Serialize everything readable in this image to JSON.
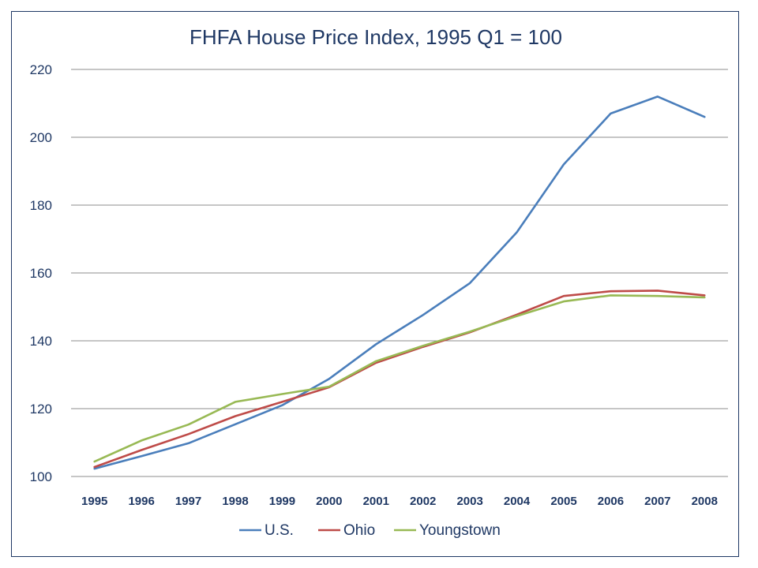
{
  "chart_data": {
    "type": "line",
    "title": "FHFA House Price Index, 1995 Q1 = 100",
    "xlabel": "",
    "ylabel": "",
    "categories": [
      "1995",
      "1996",
      "1997",
      "1998",
      "1999",
      "2000",
      "2001",
      "2002",
      "2003",
      "2004",
      "2005",
      "2006",
      "2007",
      "2008"
    ],
    "ylim": [
      100,
      220
    ],
    "yticks": [
      100,
      120,
      140,
      160,
      180,
      200,
      220
    ],
    "grid": true,
    "legend_position": "bottom",
    "series": [
      {
        "name": "U.S.",
        "color": "#4a7ebb",
        "values": [
          102.3,
          106.0,
          109.8,
          115.4,
          121.0,
          128.8,
          139.0,
          147.6,
          157.0,
          172.0,
          192.0,
          207.0,
          212.0,
          206.0
        ]
      },
      {
        "name": "Ohio",
        "color": "#be4b48",
        "values": [
          102.8,
          107.8,
          112.5,
          117.8,
          122.0,
          126.3,
          133.5,
          138.2,
          142.5,
          147.7,
          153.2,
          154.6,
          154.8,
          153.4
        ]
      },
      {
        "name": "Youngstown",
        "color": "#98b954",
        "values": [
          104.4,
          110.6,
          115.3,
          122.0,
          124.3,
          126.5,
          134.0,
          138.5,
          142.7,
          147.3,
          151.6,
          153.4,
          153.2,
          152.8
        ]
      }
    ]
  }
}
